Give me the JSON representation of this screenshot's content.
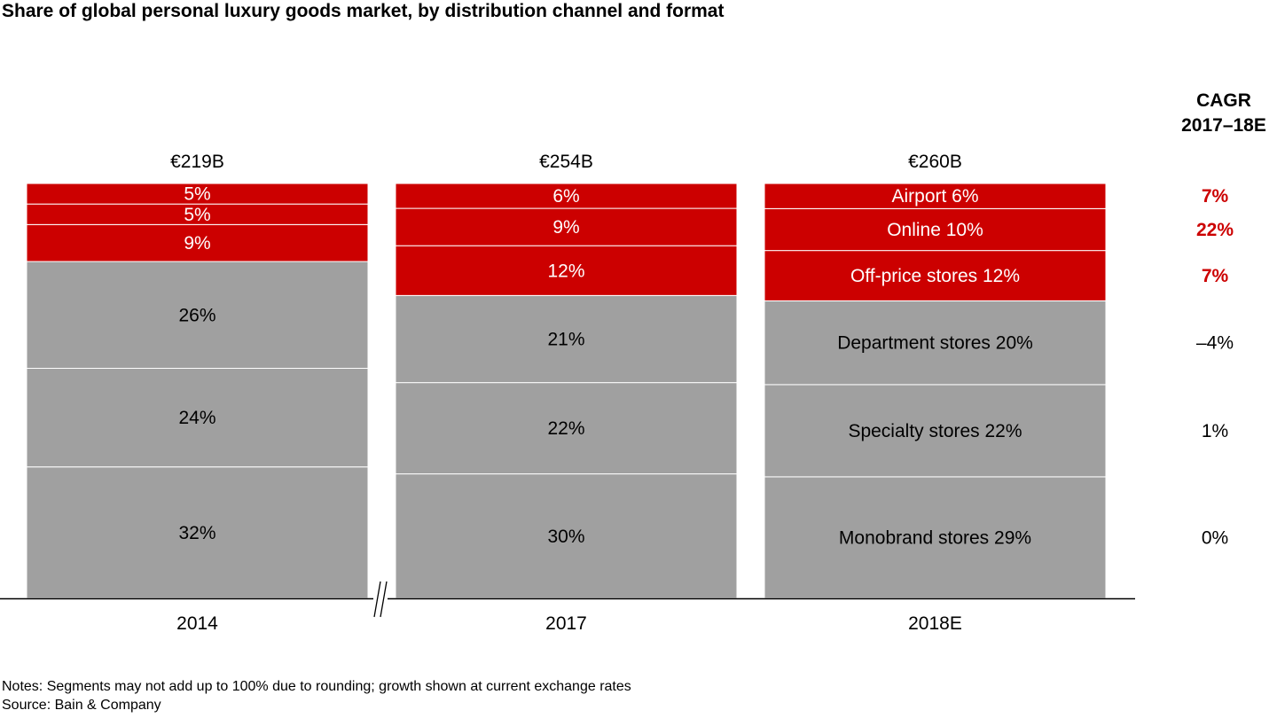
{
  "title": "Share of global personal luxury goods market, by distribution channel and format",
  "cagr_header": {
    "line1": "CAGR",
    "line2": "2017–18E"
  },
  "notes": {
    "notes_text": "Notes: Segments may not add up to 100% due to rounding; growth shown at current exchange rates",
    "source_text": "Source: Bain & Company"
  },
  "colors": {
    "red": "#cc0000",
    "gray": "#a0a0a0",
    "cagr_red": "#cc0000"
  },
  "chart_data": {
    "type": "bar",
    "stacked": true,
    "normalized": "100%",
    "axis_break_between": [
      "2014",
      "2017"
    ],
    "categories": [
      "2014",
      "2017",
      "2018E"
    ],
    "totals": [
      "€219B",
      "€254B",
      "€260B"
    ],
    "series": [
      {
        "name": "Monobrand stores",
        "color": "gray",
        "values": [
          32,
          30,
          29
        ],
        "labels": [
          "32%",
          "30%",
          "Monobrand stores 29%"
        ]
      },
      {
        "name": "Specialty stores",
        "color": "gray",
        "values": [
          24,
          22,
          22
        ],
        "labels": [
          "24%",
          "22%",
          "Specialty stores 22%"
        ]
      },
      {
        "name": "Department stores",
        "color": "gray",
        "values": [
          26,
          21,
          20
        ],
        "labels": [
          "26%",
          "21%",
          "Department stores 20%"
        ]
      },
      {
        "name": "Off-price stores",
        "color": "red",
        "values": [
          9,
          12,
          12
        ],
        "labels": [
          "9%",
          "12%",
          "Off-price stores 12%"
        ]
      },
      {
        "name": "Online",
        "color": "red",
        "values": [
          5,
          9,
          10
        ],
        "labels": [
          "5%",
          "9%",
          "Online 10%"
        ]
      },
      {
        "name": "Airport",
        "color": "red",
        "values": [
          5,
          6,
          6
        ],
        "labels": [
          "5%",
          "6%",
          "Airport 6%"
        ]
      }
    ],
    "cagr": [
      {
        "series": "Airport",
        "label": "7%",
        "color": "cagr_red",
        "bold": true
      },
      {
        "series": "Online",
        "label": "22%",
        "color": "cagr_red",
        "bold": true
      },
      {
        "series": "Off-price stores",
        "label": "7%",
        "color": "cagr_red",
        "bold": true
      },
      {
        "series": "Department stores",
        "label": "–4%",
        "color": "black",
        "bold": false
      },
      {
        "series": "Specialty stores",
        "label": "1%",
        "color": "black",
        "bold": false
      },
      {
        "series": "Monobrand stores",
        "label": "0%",
        "color": "black",
        "bold": false
      }
    ]
  }
}
